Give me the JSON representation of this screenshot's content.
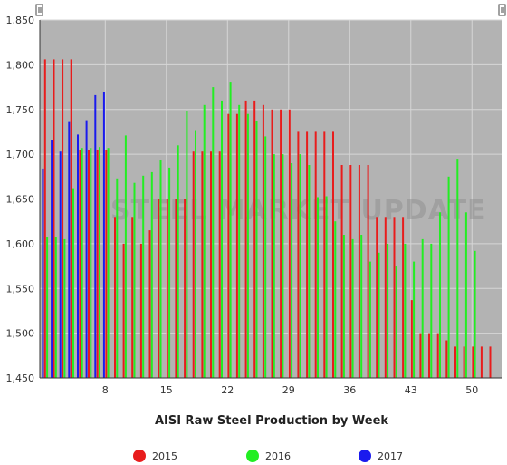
{
  "chart_data": {
    "type": "bar",
    "title": "AISI Raw Steel Production by Week",
    "xlabel": "AISI Raw Steel Production by Week",
    "ylabel": "",
    "ylim": [
      1450,
      1850
    ],
    "yticks": [
      "1,450",
      "1,500",
      "1,550",
      "1,600",
      "1,650",
      "1,700",
      "1,750",
      "1,800",
      "1,850"
    ],
    "xlim": [
      0.5,
      53.5
    ],
    "xticks": [
      8,
      15,
      22,
      29,
      36,
      43,
      50
    ],
    "grid": true,
    "legend_position": "bottom",
    "watermark": "STEEL MARKET UPDATE",
    "series": [
      {
        "name": "2015",
        "color": "#e81c1c",
        "values": [
          1806,
          1806,
          1806,
          1806,
          1705,
          1705,
          1705,
          1705,
          1630,
          1600,
          1630,
          1600,
          1615,
          1650,
          1650,
          1650,
          1650,
          1703,
          1703,
          1703,
          1703,
          1745,
          1745,
          1760,
          1760,
          1755,
          1750,
          1750,
          1750,
          1725,
          1725,
          1725,
          1725,
          1725,
          1688,
          1688,
          1688,
          1688,
          1630,
          1630,
          1630,
          1630,
          1537,
          1500,
          1500,
          1500,
          1492,
          1485,
          1485,
          1485,
          1485,
          1485
        ]
      },
      {
        "name": "2016",
        "color": "#22ee22",
        "values": [
          1607,
          1607,
          1605,
          1662,
          1707,
          1707,
          1708,
          1707,
          1673,
          1721,
          1668,
          1676,
          1680,
          1693,
          1685,
          1710,
          1748,
          1727,
          1755,
          1775,
          1760,
          1780,
          1755,
          1745,
          1737,
          1720,
          1700,
          1700,
          1690,
          1700,
          1688,
          1652,
          1653,
          1625,
          1610,
          1605,
          1610,
          1580,
          1590,
          1600,
          1575,
          1600,
          1580,
          1605,
          1600,
          1635,
          1675,
          1695,
          1635,
          1592
        ]
      },
      {
        "name": "2017",
        "color": "#1a1aee",
        "values": [
          1684,
          1716,
          1703,
          1736,
          1722,
          1738,
          1766,
          1770
        ]
      }
    ]
  }
}
